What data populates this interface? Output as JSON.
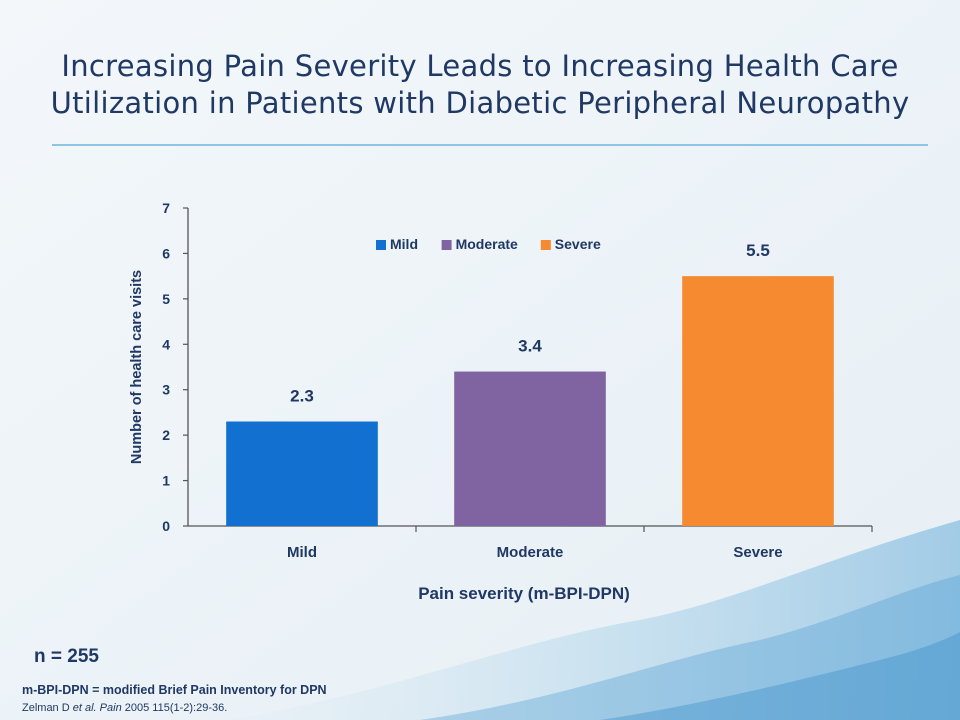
{
  "slide": {
    "title_line1": "Increasing Pain Severity Leads to Increasing Health Care",
    "title_line2": "Utilization in Patients with Diabetic Peripheral Neuropathy",
    "n_note": "n = 255",
    "footnote_definition": "m-BPI-DPN = modified Brief Pain Inventory for DPN",
    "footnote_citation_author": "Zelman D ",
    "footnote_citation_etal": "et al.",
    "footnote_citation_journal": "Pain",
    "footnote_citation_ref": " 2005 115(1-2):29-36."
  },
  "chart_data": {
    "type": "bar",
    "categories": [
      "Mild",
      "Moderate",
      "Severe"
    ],
    "values": [
      2.3,
      3.4,
      5.5
    ],
    "data_labels": [
      "2.3",
      "3.4",
      "5.5"
    ],
    "colors": [
      "#1170d0",
      "#8064a2",
      "#f58a30"
    ],
    "legend": [
      {
        "label": "Mild",
        "color": "#1170d0"
      },
      {
        "label": "Moderate",
        "color": "#8064a2"
      },
      {
        "label": "Severe",
        "color": "#f58a30"
      }
    ],
    "legend_position": "top-center",
    "xlabel": "Pain severity (m-BPI-DPN)",
    "ylabel": "Number of health care visits",
    "ylim": [
      0,
      7
    ],
    "yticks": [
      0,
      1,
      2,
      3,
      4,
      5,
      6,
      7
    ],
    "grid": false,
    "text_color": "#1f3864"
  }
}
